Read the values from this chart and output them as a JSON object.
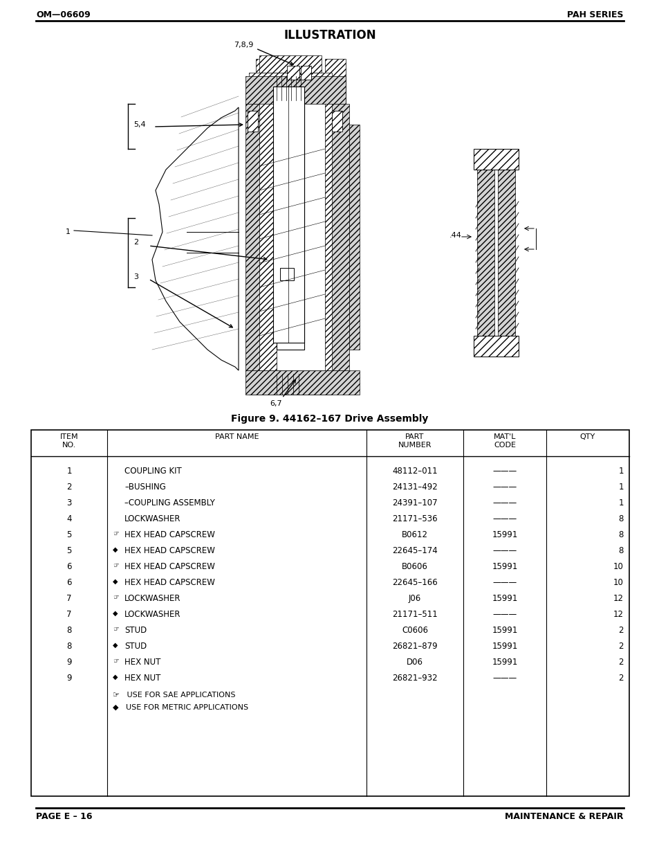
{
  "header_left": "OM—06609",
  "header_right": "PAH SERIES",
  "illustration_title": "ILLUSTRATION",
  "figure_caption": "Figure 9. 44162–167 Drive Assembly",
  "footer_left": "PAGE E – 16",
  "footer_right": "MAINTENANCE & REPAIR",
  "table_headers": [
    "ITEM\nNO.",
    "PART NAME",
    "PART\nNUMBER",
    "MAT'L\nCODE",
    "QTY"
  ],
  "table_rows": [
    [
      "1",
      "",
      "COUPLING KIT",
      "48112–011",
      "———",
      "1"
    ],
    [
      "2",
      "",
      "–BUSHING",
      "24131–492",
      "———",
      "1"
    ],
    [
      "3",
      "",
      "–COUPLING ASSEMBLY",
      "24391–107",
      "———",
      "1"
    ],
    [
      "4",
      "",
      "LOCKWASHER",
      "21171–536",
      "———",
      "8"
    ],
    [
      "5",
      "☞",
      "HEX HEAD CAPSCREW",
      "B0612",
      "15991",
      "8"
    ],
    [
      "5",
      "◆",
      "HEX HEAD CAPSCREW",
      "22645–174",
      "———",
      "8"
    ],
    [
      "6",
      "☞",
      "HEX HEAD CAPSCREW",
      "B0606",
      "15991",
      "10"
    ],
    [
      "6",
      "◆",
      "HEX HEAD CAPSCREW",
      "22645–166",
      "———",
      "10"
    ],
    [
      "7",
      "☞",
      "LOCKWASHER",
      "J06",
      "15991",
      "12"
    ],
    [
      "7",
      "◆",
      "LOCKWASHER",
      "21171–511",
      "———",
      "12"
    ],
    [
      "8",
      "☞",
      "STUD",
      "C0606",
      "15991",
      "2"
    ],
    [
      "8",
      "◆",
      "STUD",
      "26821–879",
      "15991",
      "2"
    ],
    [
      "9",
      "☞",
      "HEX NUT",
      "D06",
      "15991",
      "2"
    ],
    [
      "9",
      "◆",
      "HEX NUT",
      "26821–932",
      "———",
      "2"
    ]
  ],
  "footnote_sae": "☞   USE FOR SAE APPLICATIONS",
  "footnote_metric": "◆   USE FOR METRIC APPLICATIONS",
  "bg_color": "#ffffff",
  "text_color": "#000000",
  "line_color": "#000000"
}
